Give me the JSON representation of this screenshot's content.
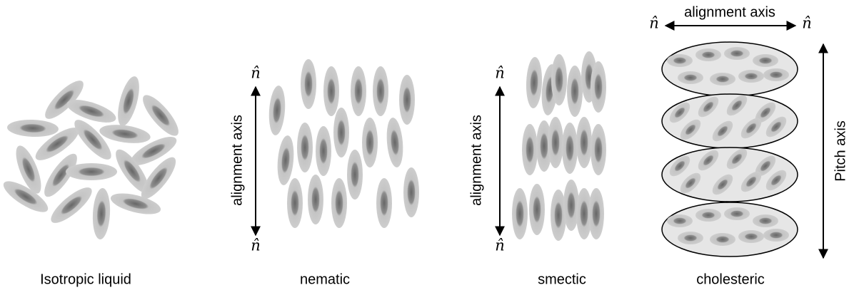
{
  "panels": [
    {
      "caption": "Isotropic liquid"
    },
    {
      "caption": "nematic",
      "axis_label": "alignment axis",
      "director_top": "n̂",
      "director_bottom": "n̂"
    },
    {
      "caption": "smectic",
      "axis_label": "alignment axis",
      "director_top": "n̂",
      "director_bottom": "n̂"
    },
    {
      "caption": "cholesteric",
      "axis_label": "alignment axis",
      "director_left": "n̂",
      "director_right": "n̂",
      "pitch_label": "Pitch axis"
    }
  ]
}
